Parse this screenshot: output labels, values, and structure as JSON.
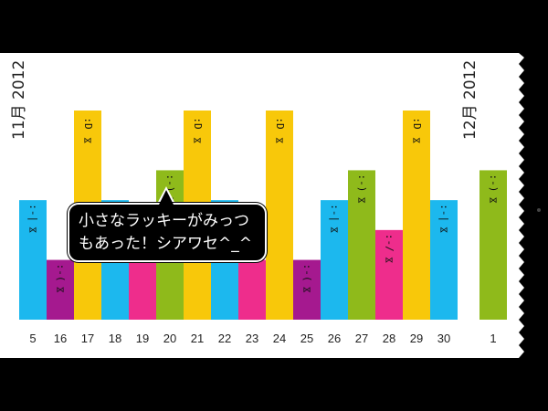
{
  "months": {
    "november": "11月 2012",
    "december": "12月 2012"
  },
  "message": {
    "line1": "小さなラッキーがみっつ",
    "line2": "もあった！シアワセ^_^"
  },
  "colors": {
    "background": "#000000",
    "paper": "#ffffff",
    "blue": "#1cb8ee",
    "purple": "#a5198f",
    "yellow": "#f8c80a",
    "pink": "#ee2d8c",
    "green": "#8fba1b"
  },
  "faces": {
    "happy_big": ":D",
    "happy": ":-)",
    "neutral": ":-|",
    "sad": ":-(",
    "meh": ":-/"
  },
  "chart_data": {
    "type": "bar",
    "categories": [
      "5",
      "16",
      "17",
      "18",
      "19",
      "20",
      "21",
      "22",
      "23",
      "24",
      "25",
      "26",
      "27",
      "28",
      "29",
      "30",
      "1"
    ],
    "values": [
      4,
      2,
      7,
      4,
      2,
      5,
      7,
      4,
      2,
      7,
      2,
      4,
      5,
      3,
      7,
      4,
      5
    ],
    "colors": [
      "blue",
      "purple",
      "yellow",
      "blue",
      "pink",
      "green",
      "yellow",
      "blue",
      "pink",
      "yellow",
      "purple",
      "blue",
      "green",
      "pink",
      "yellow",
      "blue",
      "green"
    ],
    "moods": [
      "neutral",
      "sad",
      "happy_big",
      "neutral",
      "",
      "happy",
      "happy_big",
      "neutral",
      "",
      "happy_big",
      "sad",
      "neutral",
      "happy",
      "meh",
      "happy_big",
      "neutral",
      "happy"
    ],
    "ylim": [
      0,
      7
    ],
    "grid": false
  }
}
